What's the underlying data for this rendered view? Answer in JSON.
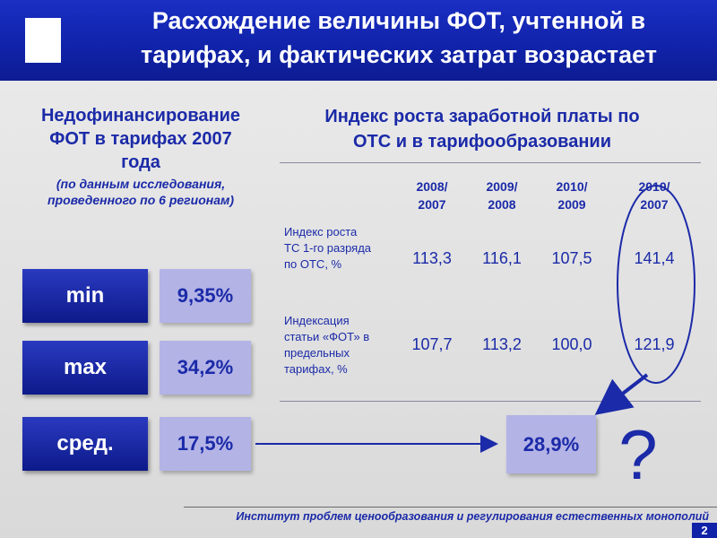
{
  "header": {
    "title_line1": "Расхождение величины ФОТ, учтенной в",
    "title_line2": "тарифах, и фактических затрат возрастает"
  },
  "left": {
    "title_line1": "Недофинансирование",
    "title_line2": "ФОТ в тарифах 2007",
    "title_line3": "года",
    "subtitle_line1": "(по данным исследования,",
    "subtitle_line2": "проведенного по 6 регионам)"
  },
  "stats": [
    {
      "label": "min",
      "value": "9,35%"
    },
    {
      "label": "max",
      "value": "34,2%"
    },
    {
      "label": "сред.",
      "value": "17,5%"
    }
  ],
  "right": {
    "title_line1": "Индекс роста заработной платы по",
    "title_line2": "ОТС и в тарифообразовании"
  },
  "table": {
    "columns": [
      {
        "line1": "2008/",
        "line2": "2007"
      },
      {
        "line1": "2009/",
        "line2": "2008"
      },
      {
        "line1": "2010/",
        "line2": "2009"
      },
      {
        "line1": "2010/",
        "line2": "2007"
      }
    ],
    "rows": [
      {
        "label_lines": [
          "Индекс роста",
          "ТС 1-го разряда",
          "по ОТС, %"
        ],
        "values": [
          "113,3",
          "116,1",
          "107,5",
          "141,4"
        ]
      },
      {
        "label_lines": [
          "Индексация",
          "статьи «ФОТ» в",
          "предельных",
          "тарифах, %"
        ],
        "values": [
          "107,7",
          "113,2",
          "100,0",
          "121,9"
        ]
      }
    ]
  },
  "result": {
    "value": "28,9%",
    "question_mark": "?"
  },
  "footer": {
    "text": "Институт проблем ценообразования и регулирования естественных монополий"
  },
  "page_number": "2",
  "colors": {
    "brand_blue": "#1022a8",
    "light_box": "#b3b3e6",
    "background": "#dcdcdc"
  }
}
